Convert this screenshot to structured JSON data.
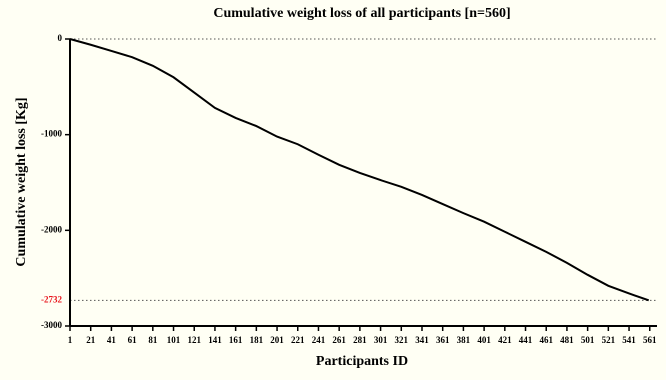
{
  "chart_data": {
    "type": "line",
    "title": "Cumulative weight loss of all participants [n=560]",
    "xlabel": "Participants ID",
    "ylabel": "Cumulative weight loss [Kg]",
    "x": [
      1,
      21,
      41,
      61,
      81,
      101,
      121,
      141,
      161,
      181,
      201,
      221,
      241,
      261,
      281,
      301,
      321,
      341,
      361,
      381,
      401,
      421,
      441,
      461,
      481,
      501,
      521,
      541,
      560
    ],
    "series": [
      {
        "color": "#000000",
        "values": [
          0,
          -60,
          -125,
          -190,
          -280,
          -400,
          -560,
          -720,
          -825,
          -910,
          -1020,
          -1100,
          -1210,
          -1315,
          -1400,
          -1475,
          -1545,
          -1630,
          -1725,
          -1820,
          -1910,
          -2015,
          -2120,
          -2225,
          -2340,
          -2465,
          -2580,
          -2660,
          -2732
        ]
      }
    ],
    "xlim": [
      1,
      568
    ],
    "xticks": [
      1,
      21,
      41,
      61,
      81,
      101,
      121,
      141,
      161,
      181,
      201,
      221,
      241,
      261,
      281,
      301,
      321,
      341,
      361,
      381,
      401,
      421,
      441,
      461,
      481,
      501,
      521,
      541,
      561
    ],
    "ylim": [
      -3000,
      0
    ],
    "yticks": [
      0,
      -1000,
      -2000,
      -3000
    ],
    "hlines": [
      {
        "value": 0
      },
      {
        "value": -2732,
        "label_color": "#e8141c"
      }
    ]
  }
}
